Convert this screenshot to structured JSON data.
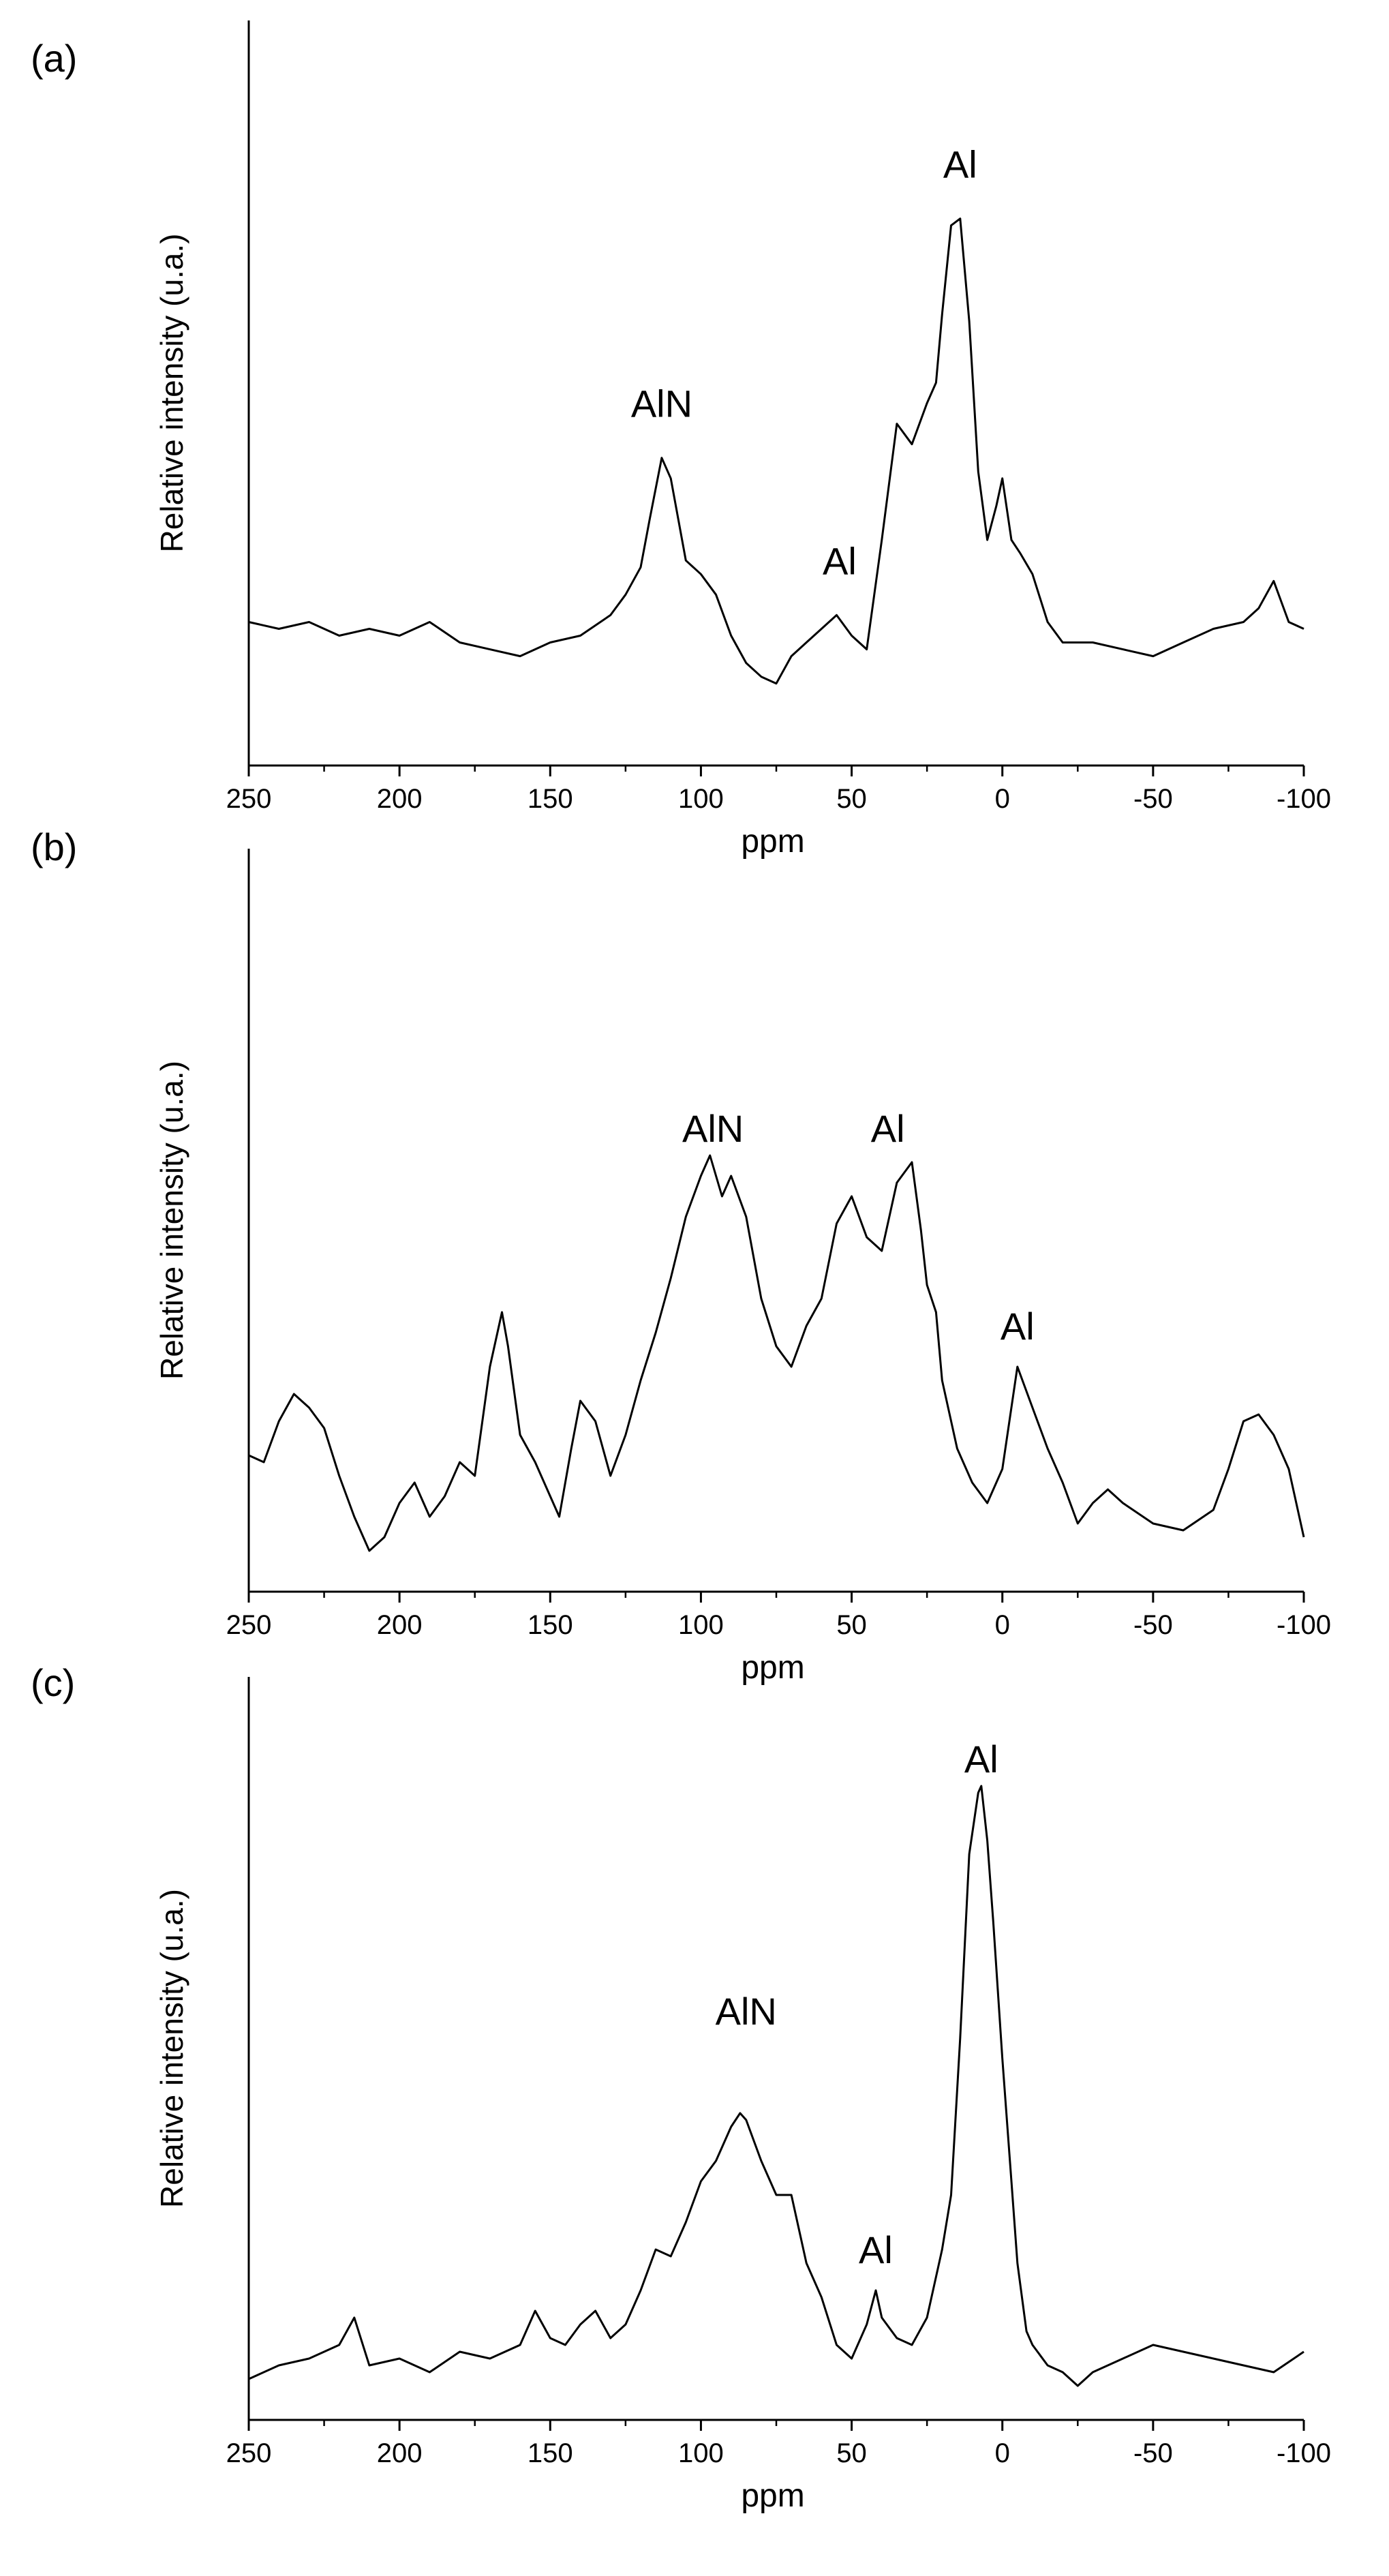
{
  "chart_data": [
    {
      "type": "line",
      "panel_label": "(a)",
      "xlabel": "ppm",
      "ylabel": "Relative intensity (u.a.)",
      "xlim": [
        250,
        -100
      ],
      "ylim": [
        0,
        1
      ],
      "xticks": [
        250,
        200,
        150,
        100,
        50,
        0,
        -50,
        -100
      ],
      "xticklabels": [
        "250",
        "200",
        "150",
        "100",
        "50",
        "0",
        "-50",
        "-100"
      ],
      "grid": false,
      "annotations": [
        {
          "text": "AlN",
          "x": 113,
          "y": 0.48
        },
        {
          "text": "Al",
          "x": 54,
          "y": 0.25
        },
        {
          "text": "Al",
          "x": 14,
          "y": 0.83
        }
      ],
      "series": [
        {
          "x": [
            250,
            240,
            230,
            220,
            210,
            200,
            190,
            180,
            170,
            160,
            150,
            140,
            130,
            125,
            120,
            117,
            113,
            110,
            105,
            100,
            95,
            90,
            85,
            80,
            75,
            70,
            65,
            60,
            55,
            50,
            45,
            40,
            35,
            30,
            25,
            22,
            20,
            17,
            14,
            11,
            8,
            5,
            2,
            0,
            -3,
            -6,
            -10,
            -15,
            -20,
            -30,
            -40,
            -50,
            -60,
            -70,
            -80,
            -85,
            -90,
            -95,
            -100
          ],
          "y": [
            0.18,
            0.17,
            0.18,
            0.16,
            0.17,
            0.16,
            0.18,
            0.15,
            0.14,
            0.13,
            0.15,
            0.16,
            0.19,
            0.22,
            0.26,
            0.33,
            0.42,
            0.39,
            0.27,
            0.25,
            0.22,
            0.16,
            0.12,
            0.1,
            0.09,
            0.13,
            0.15,
            0.17,
            0.19,
            0.16,
            0.14,
            0.3,
            0.47,
            0.44,
            0.5,
            0.53,
            0.63,
            0.76,
            0.77,
            0.62,
            0.4,
            0.3,
            0.35,
            0.39,
            0.3,
            0.28,
            0.25,
            0.18,
            0.15,
            0.15,
            0.14,
            0.13,
            0.15,
            0.17,
            0.18,
            0.2,
            0.24,
            0.18,
            0.17
          ]
        }
      ]
    },
    {
      "type": "line",
      "panel_label": "(b)",
      "xlabel": "ppm",
      "ylabel": "Relative intensity (u.a.)",
      "xlim": [
        250,
        -100
      ],
      "ylim": [
        0,
        1
      ],
      "xticks": [
        250,
        200,
        150,
        100,
        50,
        0,
        -50,
        -100
      ],
      "xticklabels": [
        "250",
        "200",
        "150",
        "100",
        "50",
        "0",
        "-50",
        "-100"
      ],
      "grid": false,
      "annotations": [
        {
          "text": "AlN",
          "x": 96,
          "y": 0.63
        },
        {
          "text": "Al",
          "x": 38,
          "y": 0.63
        },
        {
          "text": "Al",
          "x": -5,
          "y": 0.34
        }
      ],
      "series": [
        {
          "x": [
            250,
            245,
            240,
            235,
            230,
            225,
            220,
            215,
            210,
            205,
            200,
            195,
            190,
            185,
            180,
            175,
            170,
            166,
            164,
            160,
            155,
            150,
            147,
            143,
            140,
            135,
            130,
            125,
            120,
            115,
            110,
            105,
            100,
            97,
            93,
            90,
            85,
            80,
            75,
            70,
            65,
            60,
            55,
            50,
            45,
            40,
            35,
            30,
            27,
            25,
            22,
            20,
            15,
            10,
            5,
            0,
            -5,
            -10,
            -15,
            -20,
            -25,
            -30,
            -35,
            -40,
            -50,
            -60,
            -70,
            -75,
            -80,
            -85,
            -90,
            -95,
            -100
          ],
          "y": [
            0.17,
            0.16,
            0.22,
            0.26,
            0.24,
            0.21,
            0.14,
            0.08,
            0.03,
            0.05,
            0.1,
            0.13,
            0.08,
            0.11,
            0.16,
            0.14,
            0.3,
            0.38,
            0.33,
            0.2,
            0.16,
            0.11,
            0.08,
            0.18,
            0.25,
            0.22,
            0.14,
            0.2,
            0.28,
            0.35,
            0.43,
            0.52,
            0.58,
            0.61,
            0.55,
            0.58,
            0.52,
            0.4,
            0.33,
            0.3,
            0.36,
            0.4,
            0.51,
            0.55,
            0.49,
            0.47,
            0.57,
            0.6,
            0.5,
            0.42,
            0.38,
            0.28,
            0.18,
            0.13,
            0.1,
            0.15,
            0.3,
            0.24,
            0.18,
            0.13,
            0.07,
            0.1,
            0.12,
            0.1,
            0.07,
            0.06,
            0.09,
            0.15,
            0.22,
            0.23,
            0.2,
            0.15,
            0.05
          ]
        }
      ]
    },
    {
      "type": "line",
      "panel_label": "(c)",
      "xlabel": "ppm",
      "ylabel": "Relative intensity (u.a.)",
      "xlim": [
        250,
        -100
      ],
      "ylim": [
        0,
        1
      ],
      "xticks": [
        250,
        200,
        150,
        100,
        50,
        0,
        -50,
        -100
      ],
      "xticklabels": [
        "250",
        "200",
        "150",
        "100",
        "50",
        "0",
        "-50",
        "-100"
      ],
      "grid": false,
      "annotations": [
        {
          "text": "AlN",
          "x": 85,
          "y": 0.55
        },
        {
          "text": "Al",
          "x": 42,
          "y": 0.2
        },
        {
          "text": "Al",
          "x": 7,
          "y": 0.92
        }
      ],
      "series": [
        {
          "x": [
            250,
            240,
            230,
            220,
            215,
            210,
            200,
            190,
            180,
            170,
            160,
            155,
            150,
            145,
            140,
            135,
            130,
            125,
            120,
            115,
            110,
            105,
            100,
            95,
            90,
            87,
            85,
            80,
            75,
            70,
            65,
            60,
            55,
            50,
            45,
            42,
            40,
            35,
            30,
            25,
            20,
            17,
            14,
            11,
            8,
            7,
            5,
            3,
            0,
            -3,
            -5,
            -8,
            -10,
            -15,
            -20,
            -25,
            -30,
            -40,
            -50,
            -60,
            -70,
            -80,
            -90,
            -100
          ],
          "y": [
            0.03,
            0.05,
            0.06,
            0.08,
            0.12,
            0.05,
            0.06,
            0.04,
            0.07,
            0.06,
            0.08,
            0.13,
            0.09,
            0.08,
            0.11,
            0.13,
            0.09,
            0.11,
            0.16,
            0.22,
            0.21,
            0.26,
            0.32,
            0.35,
            0.4,
            0.42,
            0.41,
            0.35,
            0.3,
            0.3,
            0.2,
            0.15,
            0.08,
            0.06,
            0.11,
            0.16,
            0.12,
            0.09,
            0.08,
            0.12,
            0.22,
            0.3,
            0.53,
            0.8,
            0.89,
            0.9,
            0.82,
            0.7,
            0.5,
            0.32,
            0.2,
            0.1,
            0.08,
            0.05,
            0.04,
            0.02,
            0.04,
            0.06,
            0.08,
            0.07,
            0.06,
            0.05,
            0.04,
            0.07
          ]
        }
      ]
    }
  ]
}
